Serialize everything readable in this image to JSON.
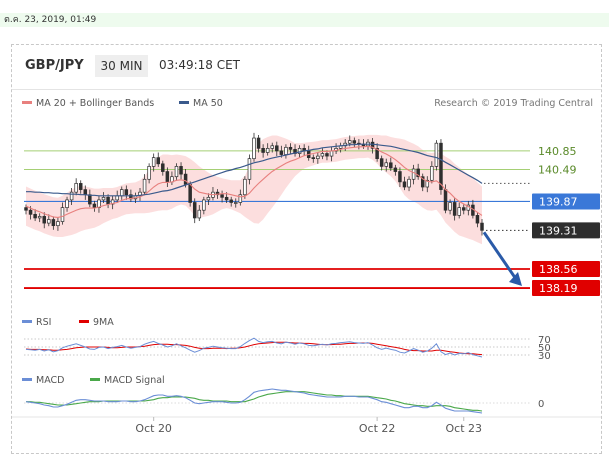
{
  "timestamp": "ต.ค. 23, 2019, 01:49",
  "header": {
    "pair": "GBP/JPY",
    "timeframe": "30 MIN",
    "time": "03:49:18 CET"
  },
  "legend": {
    "ma20": "MA 20 + Bollinger Bands",
    "ma50": "MA 50",
    "source": "Research © 2019 Trading Central",
    "rsi": "RSI",
    "rsi_ma": "9MA",
    "macd": "MACD",
    "macd_signal": "MACD Signal"
  },
  "colors": {
    "ma20": "#e8807e",
    "ma50": "#3a5a8c",
    "bollinger": "#fbd3d3",
    "candle": "#2e2e2e",
    "level_green": "#a5cf74",
    "pivot": "#3a78d8",
    "support": "#e00000",
    "arrow": "#2a5aa8",
    "rsi": "#6b8ed6",
    "rsi_ma": "#e00000",
    "macd": "#6b8ed6",
    "macd_signal": "#4aa84a"
  },
  "chart_data": [
    {
      "type": "candlestick",
      "x_ticks": [
        "Oct 20",
        "Oct 22",
        "Oct 23"
      ],
      "ylim": [
        137.9,
        141.45
      ],
      "levels": [
        {
          "label": "140.85",
          "value": 140.85,
          "style": "resistance"
        },
        {
          "label": "140.49",
          "value": 140.49,
          "style": "resistance"
        },
        {
          "label": "139.87",
          "value": 139.87,
          "style": "pivot"
        },
        {
          "label": "139.31",
          "value": 139.31,
          "style": "last"
        },
        {
          "label": "138.56",
          "value": 138.56,
          "style": "support"
        },
        {
          "label": "138.19",
          "value": 138.19,
          "style": "support"
        }
      ],
      "close": [
        139.7,
        139.62,
        139.55,
        139.58,
        139.45,
        139.52,
        139.4,
        139.48,
        139.75,
        139.9,
        140.05,
        140.22,
        140.1,
        140.0,
        139.82,
        139.75,
        139.9,
        139.95,
        139.82,
        139.9,
        139.98,
        140.1,
        140.0,
        139.92,
        139.98,
        140.05,
        140.3,
        140.55,
        140.72,
        140.6,
        140.45,
        140.25,
        140.35,
        140.55,
        140.4,
        140.2,
        139.85,
        139.55,
        139.7,
        139.9,
        139.95,
        140.05,
        140.0,
        139.95,
        139.9,
        139.85,
        139.85,
        140.0,
        140.3,
        140.7,
        141.1,
        140.9,
        140.82,
        140.9,
        140.95,
        140.85,
        140.78,
        140.92,
        140.88,
        140.8,
        140.9,
        140.85,
        140.72,
        140.7,
        140.75,
        140.8,
        140.75,
        140.85,
        140.9,
        140.95,
        141.0,
        141.05,
        141.0,
        140.98,
        140.95,
        141.02,
        140.9,
        140.7,
        140.55,
        140.62,
        140.52,
        140.45,
        140.25,
        140.15,
        140.3,
        140.5,
        140.35,
        140.15,
        140.28,
        140.55,
        141.0,
        140.1,
        139.7,
        139.85,
        139.6,
        139.75,
        139.7,
        139.8,
        139.6,
        139.45,
        139.31
      ],
      "ma20": [
        139.78,
        139.74,
        139.7,
        139.67,
        139.63,
        139.6,
        139.57,
        139.56,
        139.58,
        139.62,
        139.66,
        139.7,
        139.73,
        139.74,
        139.74,
        139.74,
        139.76,
        139.79,
        139.81,
        139.83,
        139.85,
        139.89,
        139.92,
        139.93,
        139.94,
        139.96,
        140.0,
        140.07,
        140.15,
        140.21,
        140.24,
        140.24,
        140.25,
        140.28,
        140.29,
        140.27,
        140.2,
        140.11,
        140.05,
        140.03,
        140.01,
        140.0,
        140.01,
        140.02,
        140.02,
        140.0,
        139.98,
        139.96,
        139.97,
        140.03,
        140.13,
        140.22,
        140.3,
        140.38,
        140.45,
        140.51,
        140.56,
        140.61,
        140.65,
        140.68,
        140.72,
        140.76,
        140.78,
        140.8,
        140.82,
        140.84,
        140.84,
        140.85,
        140.86,
        140.88,
        140.9,
        140.91,
        140.92,
        140.93,
        140.93,
        140.94,
        140.92,
        140.88,
        140.83,
        140.79,
        140.74,
        140.68,
        140.61,
        140.53,
        140.47,
        140.43,
        140.38,
        140.31,
        140.26,
        140.25,
        140.27,
        140.2,
        140.1,
        140.03,
        139.94,
        139.87,
        139.82,
        139.77,
        139.72,
        139.66,
        139.6
      ],
      "ma50": [
        140.06,
        140.06,
        140.05,
        140.05,
        140.04,
        140.04,
        140.03,
        140.03,
        140.02,
        140.02,
        140.01,
        140.01,
        140.0,
        140.0,
        139.99,
        139.99,
        139.98,
        139.98,
        139.98,
        139.98,
        139.98,
        139.98,
        139.98,
        139.98,
        139.98,
        139.99,
        140.0,
        140.01,
        140.03,
        140.05,
        140.07,
        140.08,
        140.1,
        140.13,
        140.16,
        140.19,
        140.22,
        140.25,
        140.28,
        140.31,
        140.34,
        140.37,
        140.4,
        140.43,
        140.46,
        140.48,
        140.51,
        140.53,
        140.56,
        140.59,
        140.62,
        140.64,
        140.66,
        140.69,
        140.71,
        140.73,
        140.75,
        140.77,
        140.79,
        140.81,
        140.83,
        140.85,
        140.86,
        140.88,
        140.89,
        140.91,
        140.92,
        140.93,
        140.94,
        140.95,
        140.96,
        140.97,
        140.97,
        140.98,
        140.98,
        140.98,
        140.98,
        140.97,
        140.96,
        140.95,
        140.94,
        140.92,
        140.9,
        140.88,
        140.86,
        140.84,
        140.82,
        140.79,
        140.76,
        140.74,
        140.72,
        140.68,
        140.63,
        140.58,
        140.53,
        140.48,
        140.43,
        140.38,
        140.33,
        140.28,
        140.22
      ],
      "bollinger_width": [
        0.38,
        0.38,
        0.38,
        0.38,
        0.38,
        0.38,
        0.38,
        0.38,
        0.4,
        0.42,
        0.44,
        0.45,
        0.44,
        0.42,
        0.4,
        0.38,
        0.36,
        0.34,
        0.32,
        0.3,
        0.3,
        0.3,
        0.3,
        0.3,
        0.3,
        0.32,
        0.36,
        0.42,
        0.48,
        0.52,
        0.54,
        0.54,
        0.52,
        0.5,
        0.48,
        0.48,
        0.5,
        0.52,
        0.5,
        0.46,
        0.42,
        0.38,
        0.34,
        0.3,
        0.28,
        0.28,
        0.3,
        0.32,
        0.4,
        0.52,
        0.68,
        0.78,
        0.78,
        0.74,
        0.7,
        0.64,
        0.56,
        0.48,
        0.4,
        0.32,
        0.28,
        0.25,
        0.24,
        0.23,
        0.22,
        0.22,
        0.22,
        0.22,
        0.22,
        0.22,
        0.22,
        0.22,
        0.22,
        0.22,
        0.22,
        0.22,
        0.24,
        0.28,
        0.32,
        0.36,
        0.38,
        0.42,
        0.48,
        0.54,
        0.56,
        0.56,
        0.56,
        0.56,
        0.56,
        0.56,
        0.56,
        0.6,
        0.64,
        0.66,
        0.66,
        0.66,
        0.64,
        0.62,
        0.6,
        0.58,
        0.56
      ],
      "projection": {
        "from": 139.31,
        "to": 138.19
      }
    },
    {
      "type": "line",
      "name": "RSI",
      "ylim": [
        20,
        80
      ],
      "reference_levels": [
        30,
        50,
        70
      ],
      "series": [
        {
          "name": "RSI",
          "values": [
            44,
            43,
            42,
            44,
            40,
            43,
            38,
            41,
            48,
            52,
            55,
            58,
            54,
            50,
            45,
            44,
            49,
            50,
            46,
            49,
            51,
            54,
            50,
            47,
            49,
            51,
            57,
            61,
            64,
            59,
            55,
            50,
            53,
            58,
            53,
            48,
            42,
            37,
            41,
            47,
            49,
            52,
            50,
            48,
            47,
            46,
            46,
            51,
            59,
            66,
            72,
            64,
            61,
            63,
            64,
            60,
            58,
            62,
            60,
            57,
            60,
            58,
            54,
            53,
            55,
            57,
            55,
            58,
            59,
            61,
            62,
            63,
            61,
            60,
            59,
            61,
            55,
            48,
            44,
            47,
            44,
            42,
            37,
            35,
            40,
            46,
            42,
            37,
            40,
            47,
            58,
            38,
            31,
            35,
            30,
            34,
            33,
            36,
            31,
            28,
            25
          ]
        },
        {
          "name": "9MA",
          "values": [
            45,
            44,
            44,
            44,
            43,
            43,
            42,
            42,
            43,
            44,
            46,
            48,
            49,
            50,
            50,
            50,
            50,
            50,
            49,
            48,
            48,
            49,
            50,
            50,
            50,
            51,
            52,
            54,
            56,
            57,
            57,
            57,
            56,
            56,
            55,
            54,
            52,
            49,
            47,
            46,
            46,
            47,
            47,
            47,
            46,
            47,
            47,
            48,
            50,
            53,
            56,
            58,
            59,
            60,
            61,
            62,
            62,
            62,
            61,
            60,
            60,
            59,
            59,
            58,
            57,
            56,
            56,
            56,
            57,
            57,
            58,
            59,
            59,
            60,
            60,
            60,
            59,
            57,
            55,
            53,
            51,
            49,
            47,
            44,
            42,
            41,
            41,
            40,
            40,
            40,
            42,
            42,
            40,
            38,
            37,
            35,
            34,
            33,
            33,
            32,
            31
          ]
        }
      ]
    },
    {
      "type": "line",
      "name": "MACD",
      "y_ticks": [
        0
      ],
      "series": [
        {
          "name": "MACD",
          "values": [
            0.02,
            0.01,
            0.0,
            -0.01,
            -0.03,
            -0.04,
            -0.06,
            -0.06,
            -0.04,
            -0.02,
            0.01,
            0.04,
            0.05,
            0.05,
            0.04,
            0.03,
            0.03,
            0.03,
            0.02,
            0.02,
            0.02,
            0.03,
            0.03,
            0.02,
            0.02,
            0.03,
            0.05,
            0.08,
            0.11,
            0.12,
            0.12,
            0.1,
            0.1,
            0.11,
            0.1,
            0.08,
            0.04,
            0.0,
            -0.01,
            0.0,
            0.01,
            0.02,
            0.02,
            0.02,
            0.01,
            0.0,
            0.0,
            0.01,
            0.05,
            0.1,
            0.16,
            0.18,
            0.19,
            0.2,
            0.21,
            0.2,
            0.19,
            0.19,
            0.18,
            0.17,
            0.16,
            0.15,
            0.13,
            0.12,
            0.11,
            0.1,
            0.09,
            0.09,
            0.09,
            0.09,
            0.1,
            0.1,
            0.1,
            0.09,
            0.09,
            0.09,
            0.07,
            0.05,
            0.02,
            0.01,
            -0.01,
            -0.03,
            -0.05,
            -0.07,
            -0.07,
            -0.05,
            -0.05,
            -0.07,
            -0.07,
            -0.04,
            0.01,
            -0.03,
            -0.08,
            -0.1,
            -0.12,
            -0.12,
            -0.12,
            -0.12,
            -0.13,
            -0.14,
            -0.15
          ]
        },
        {
          "name": "MACD Signal",
          "values": [
            0.02,
            0.02,
            0.01,
            0.01,
            0.0,
            -0.01,
            -0.02,
            -0.03,
            -0.03,
            -0.03,
            -0.02,
            -0.01,
            0.0,
            0.01,
            0.02,
            0.02,
            0.02,
            0.03,
            0.03,
            0.03,
            0.03,
            0.03,
            0.03,
            0.03,
            0.03,
            0.03,
            0.03,
            0.04,
            0.05,
            0.07,
            0.08,
            0.08,
            0.09,
            0.09,
            0.09,
            0.09,
            0.08,
            0.07,
            0.05,
            0.04,
            0.04,
            0.03,
            0.03,
            0.03,
            0.03,
            0.02,
            0.02,
            0.02,
            0.02,
            0.04,
            0.06,
            0.09,
            0.11,
            0.13,
            0.14,
            0.15,
            0.16,
            0.17,
            0.17,
            0.17,
            0.17,
            0.17,
            0.16,
            0.15,
            0.14,
            0.13,
            0.12,
            0.12,
            0.11,
            0.11,
            0.1,
            0.1,
            0.1,
            0.1,
            0.1,
            0.1,
            0.09,
            0.08,
            0.07,
            0.06,
            0.04,
            0.03,
            0.01,
            -0.01,
            -0.02,
            -0.03,
            -0.04,
            -0.04,
            -0.05,
            -0.05,
            -0.04,
            -0.04,
            -0.04,
            -0.05,
            -0.07,
            -0.08,
            -0.09,
            -0.1,
            -0.11,
            -0.11,
            -0.12
          ]
        }
      ]
    }
  ]
}
